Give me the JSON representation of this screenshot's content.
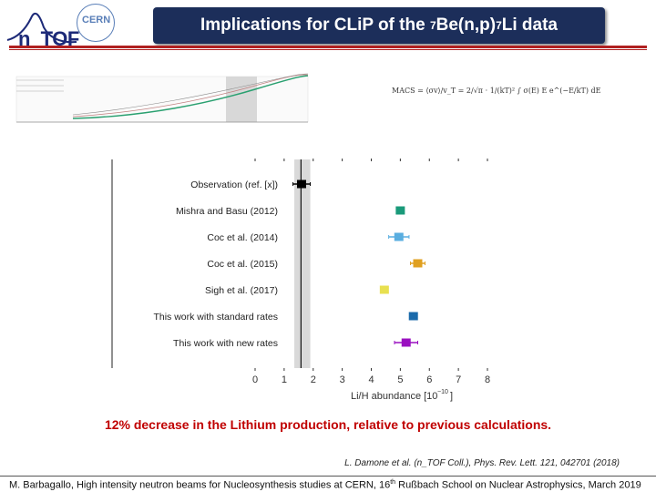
{
  "header": {
    "logo_ntof": "n_TOF",
    "logo_cern": "CERN",
    "title_pre": "Implications for CLiP of the ",
    "title_sup1": "7",
    "title_mid": "Be(n,p)",
    "title_sup2": "7",
    "title_post": "Li data"
  },
  "formula_text": "MACS = ⟨σv⟩/v_T = 2/√π · 1/(kT)² ∫ σ(E) E e^(−E/kT) dE",
  "chart_data": {
    "type": "scatter",
    "xlabel_main": "Li/H abundance [10",
    "xlabel_exp": "−10",
    "xlabel_close": "]",
    "xlim": [
      0,
      8
    ],
    "x_ticks": [
      "0",
      "1",
      "2",
      "3",
      "4",
      "5",
      "6",
      "7",
      "8"
    ],
    "band": {
      "min": 1.35,
      "max": 1.9
    },
    "observation_line": 1.58,
    "points": [
      {
        "label": "Observation (ref. [x])",
        "value": 1.6,
        "err_low": 0.3,
        "err_high": 0.3,
        "color": "#000000"
      },
      {
        "label": "Mishra and Basu (2012)",
        "value": 5.0,
        "err_low": 0.0,
        "err_high": 0.0,
        "color": "#1a9a7a"
      },
      {
        "label": "Coc et al. (2014)",
        "value": 4.95,
        "err_low": 0.35,
        "err_high": 0.35,
        "color": "#5aaee0"
      },
      {
        "label": "Coc et al. (2015)",
        "value": 5.6,
        "err_low": 0.25,
        "err_high": 0.25,
        "color": "#e0a020"
      },
      {
        "label": "Sigh et al. (2017)",
        "value": 4.45,
        "err_low": 0.0,
        "err_high": 0.0,
        "color": "#e8e050"
      },
      {
        "label": "This work with standard rates",
        "value": 5.45,
        "err_low": 0.0,
        "err_high": 0.0,
        "color": "#1a6aaa"
      },
      {
        "label": "This work with new rates",
        "value": 5.2,
        "err_low": 0.4,
        "err_high": 0.4,
        "color": "#9a10c0"
      }
    ]
  },
  "caption": "12% decrease in the Lithium production, relative to previous calculations.",
  "reference": "L. Damone et al. (n_TOF Coll.), Phys. Rev. Lett. 121, 042701 (2018)",
  "footer": {
    "pre": "M. Barbagallo, High intensity neutron beams for Nucleosynthesis studies at CERN, 16",
    "sup": "th",
    "post": " Rußbach School on Nuclear Astrophysics, March 2019"
  }
}
